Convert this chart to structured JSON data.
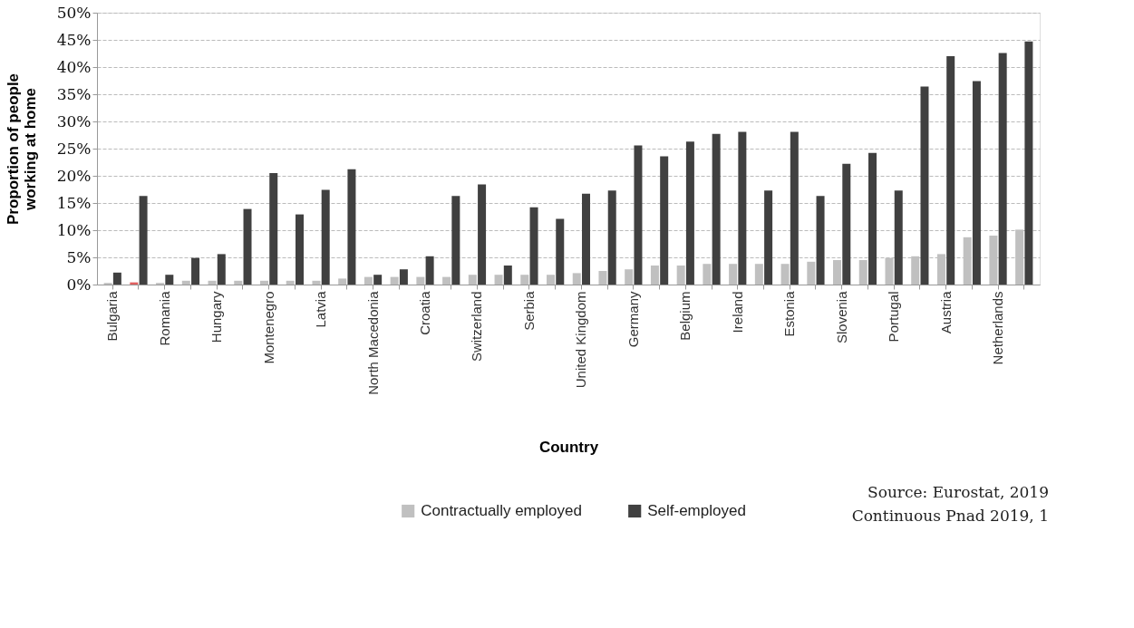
{
  "chart_data": {
    "type": "bar",
    "xlabel": "Country",
    "ylabel": "Proportion of people working at home",
    "categories": [
      "Bulgaria",
      null,
      "Romania",
      null,
      "Hungary",
      null,
      "Montenegro",
      null,
      "Latvia",
      null,
      "North Macedonia",
      null,
      "Croatia",
      null,
      "Switzerland",
      null,
      "Serbia",
      null,
      "United Kingdom",
      null,
      "Germany",
      null,
      "Belgium",
      null,
      "Ireland",
      null,
      "Estonia",
      null,
      "Slovenia",
      null,
      "Portugal",
      null,
      "Austria",
      null,
      "Netherlands",
      null
    ],
    "series": [
      {
        "name": "Contractually employed",
        "color": "#c0c0c0",
        "colors": [
          "#c0c0c0",
          "#e06060",
          "#c0c0c0",
          "#c0c0c0",
          "#c0c0c0",
          "#c0c0c0",
          "#c0c0c0",
          "#c0c0c0",
          "#c0c0c0",
          "#c0c0c0",
          "#c0c0c0",
          "#c0c0c0",
          "#c0c0c0",
          "#c0c0c0",
          "#c0c0c0",
          "#c0c0c0",
          "#c0c0c0",
          "#c0c0c0",
          "#c0c0c0",
          "#c0c0c0",
          "#c0c0c0",
          "#c0c0c0",
          "#c0c0c0",
          "#c0c0c0",
          "#c0c0c0",
          "#c0c0c0",
          "#c0c0c0",
          "#c0c0c0",
          "#c0c0c0",
          "#c0c0c0",
          "#c0c0c0",
          "#c0c0c0",
          "#c0c0c0",
          "#c0c0c0",
          "#c0c0c0",
          "#c0c0c0"
        ],
        "values": [
          0.3,
          0.4,
          0.3,
          0.7,
          0.7,
          0.7,
          0.7,
          0.7,
          0.7,
          1.1,
          1.4,
          1.4,
          1.4,
          1.4,
          1.8,
          1.8,
          1.8,
          1.8,
          2.1,
          2.5,
          2.8,
          3.5,
          3.5,
          3.8,
          3.8,
          3.8,
          3.8,
          4.2,
          4.5,
          4.5,
          4.9,
          5.2,
          5.6,
          8.7,
          9.0,
          10.1
        ]
      },
      {
        "name": "Self-employed",
        "color": "#404040",
        "values": [
          2.2,
          16.3,
          1.8,
          4.9,
          5.6,
          13.9,
          20.5,
          12.9,
          17.4,
          21.2,
          1.8,
          2.8,
          5.2,
          16.3,
          18.4,
          3.5,
          14.2,
          12.1,
          16.7,
          17.3,
          25.6,
          23.6,
          26.3,
          27.7,
          28.1,
          17.3,
          28.1,
          16.3,
          22.2,
          24.2,
          17.3,
          36.4,
          42,
          37.4,
          42.6,
          44.7
        ]
      }
    ],
    "ylim": [
      0,
      50
    ],
    "yticks": [
      {
        "value": 0,
        "label": "0%"
      },
      {
        "value": 5,
        "label": "5%"
      },
      {
        "value": 10,
        "label": "10%"
      },
      {
        "value": 15,
        "label": "15%"
      },
      {
        "value": 20,
        "label": "20%"
      },
      {
        "value": 25,
        "label": "25%"
      },
      {
        "value": 30,
        "label": "30%"
      },
      {
        "value": 35,
        "label": "35%"
      },
      {
        "value": 40,
        "label": "40%"
      },
      {
        "value": 45,
        "label": "45%"
      },
      {
        "value": 50,
        "label": "50%"
      }
    ],
    "grid": "y",
    "legend": "bottom",
    "annotations": [
      "Source: Eurostat, 2019",
      "Continuous Pnad 2019, 1"
    ]
  }
}
